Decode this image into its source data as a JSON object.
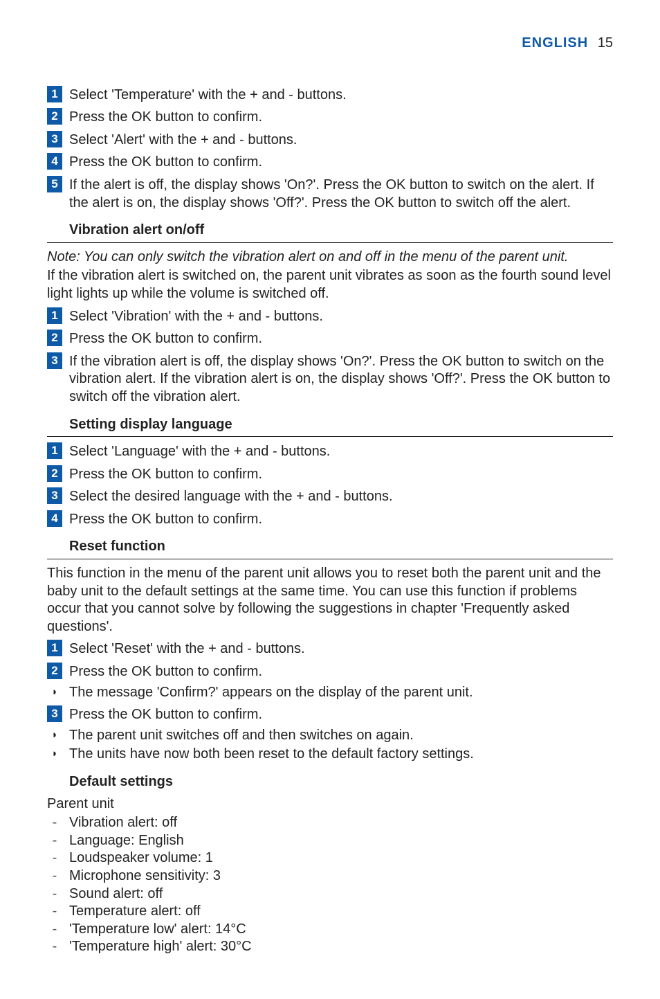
{
  "colors": {
    "accent_blue": "#0e5aa7",
    "text": "#222222",
    "dash": "#555555",
    "rule": "#222222",
    "background": "#ffffff"
  },
  "typography": {
    "body_fontsize_pt": 15,
    "header_fontsize_pt": 17,
    "font_family": "Gill Sans"
  },
  "header": {
    "language": "ENGLISH",
    "page_number": "15"
  },
  "sections": [
    {
      "id": "temp_alert_steps",
      "steps": [
        "Select 'Temperature' with the + and - buttons.",
        "Press the OK button to confirm.",
        "Select 'Alert' with the + and - buttons.",
        "Press the OK button to confirm.",
        "If the alert is off, the display shows 'On?'. Press the OK button to switch on the alert. If the alert is on, the display shows 'Off?'. Press the OK button to switch off the alert."
      ]
    },
    {
      "id": "vibration",
      "title": "Vibration alert on/off",
      "note": "Note: You can only switch the vibration alert on and off in the menu of the parent unit.",
      "intro": "If the vibration alert is switched on, the parent unit vibrates as soon as the fourth sound level light lights up while the volume is switched off.",
      "steps": [
        "Select 'Vibration' with the + and - buttons.",
        "Press the OK button to confirm.",
        "If the vibration alert is off, the display shows 'On?'. Press the OK button to switch on the vibration alert. If the vibration alert is on, the display shows 'Off?'. Press the OK button to switch off the vibration alert."
      ]
    },
    {
      "id": "language",
      "title": "Setting display language",
      "steps": [
        "Select 'Language' with the + and - buttons.",
        "Press the OK button to confirm.",
        "Select the desired language with the + and - buttons.",
        "Press the OK button to confirm."
      ]
    },
    {
      "id": "reset",
      "title": "Reset function",
      "intro": "This function in the menu of the parent unit allows you to reset both the parent unit and the baby unit to the default settings at the same time. You can use this function if problems occur that you cannot solve by following the suggestions in chapter 'Frequently asked questions'.",
      "steps": [
        {
          "text": "Select 'Reset' with the + and - buttons."
        },
        {
          "text": "Press the OK button to confirm.",
          "results": [
            "The message 'Confirm?' appears on the display of the parent unit."
          ]
        },
        {
          "text": "Press the OK button to confirm.",
          "results": [
            "The parent unit switches off and then switches on again.",
            "The units have now both been reset to the default factory settings."
          ]
        }
      ]
    },
    {
      "id": "defaults",
      "title": "Default settings",
      "subhead": "Parent unit",
      "items": [
        "Vibration alert: off",
        "Language: English",
        "Loudspeaker volume: 1",
        "Microphone sensitivity: 3",
        "Sound alert: off",
        "Temperature alert: off",
        "'Temperature low' alert: 14°C",
        "'Temperature high' alert: 30°C"
      ]
    }
  ]
}
